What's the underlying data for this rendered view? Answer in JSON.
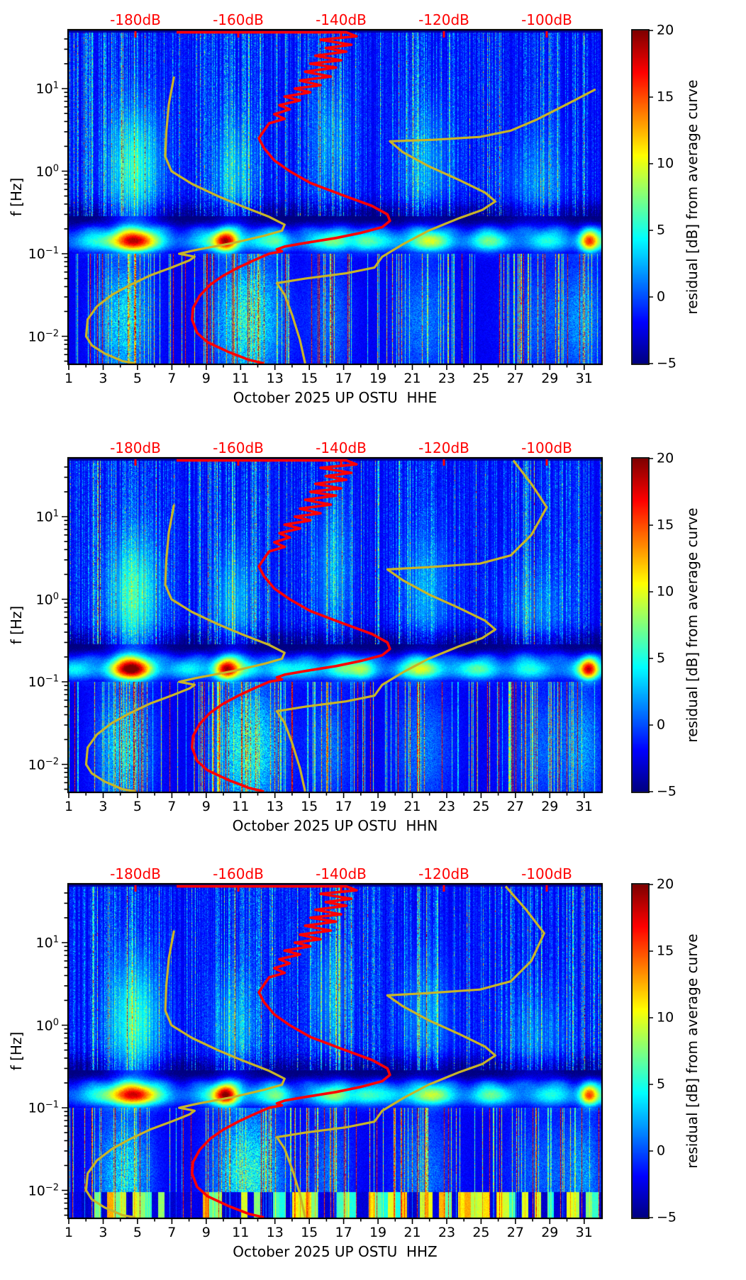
{
  "chart_data": {
    "type": "heatmap",
    "layout": "three stacked daily-spectrogram panels with identical axes, each with its own jet colorbar",
    "panels": [
      {
        "channel": "HHE",
        "title": "October 2025 UP OSTU  HHE"
      },
      {
        "channel": "HHN",
        "title": "October 2025 UP OSTU  HHN"
      },
      {
        "channel": "HHZ",
        "title": "October 2025 UP OSTU  HHZ"
      }
    ],
    "x_axis": {
      "month": "October 2025",
      "ticks_day": [
        1,
        3,
        5,
        7,
        9,
        11,
        13,
        15,
        17,
        19,
        21,
        23,
        25,
        27,
        29,
        31
      ],
      "range_day": [
        1,
        32
      ],
      "minor_ticks": "every day"
    },
    "y_axis": {
      "label": "f [Hz]",
      "scale": "log",
      "range_hz": [
        0.0047,
        50
      ],
      "major_ticks_hz": [
        10,
        1,
        0.1,
        0.01
      ],
      "tick_exponents": [
        1,
        0,
        -1,
        -2
      ]
    },
    "colorbar": {
      "label": "residual [dB] from average curve",
      "colormap": "jet",
      "range_db": [
        -5,
        20
      ],
      "ticks_db": [
        20,
        15,
        10,
        5,
        0,
        -5
      ]
    },
    "top_db_axis": {
      "unit": "dB",
      "color": "#ff0000",
      "ticks_db": [
        -180,
        -160,
        -140,
        -120,
        -100
      ],
      "labels": [
        "-180dB",
        "-160dB",
        "-140dB",
        "-120dB",
        "-100dB"
      ]
    },
    "overlay_curves": {
      "average_psd_red": [
        [
          -172,
          48
        ],
        [
          -139,
          48
        ],
        [
          -137,
          43
        ],
        [
          -144,
          39
        ],
        [
          -138,
          34
        ],
        [
          -143,
          31
        ],
        [
          -139,
          28
        ],
        [
          -145,
          25
        ],
        [
          -140,
          22
        ],
        [
          -146,
          20
        ],
        [
          -141,
          18
        ],
        [
          -147,
          16
        ],
        [
          -142,
          14
        ],
        [
          -148,
          12.5
        ],
        [
          -144,
          11
        ],
        [
          -149,
          10
        ],
        [
          -146,
          9
        ],
        [
          -151,
          8
        ],
        [
          -148,
          7.2
        ],
        [
          -152,
          6.3
        ],
        [
          -150,
          5.6
        ],
        [
          -153,
          4.9
        ],
        [
          -151,
          4.3
        ],
        [
          -154,
          3.8
        ],
        [
          -155,
          3.1
        ],
        [
          -156,
          2.5
        ],
        [
          -155,
          1.9
        ],
        [
          -153,
          1.35
        ],
        [
          -150,
          1.0
        ],
        [
          -146,
          0.72
        ],
        [
          -140,
          0.52
        ],
        [
          -134,
          0.38
        ],
        [
          -131,
          0.3
        ],
        [
          -130.5,
          0.25
        ],
        [
          -132,
          0.21
        ],
        [
          -136,
          0.18
        ],
        [
          -141,
          0.155
        ],
        [
          -147,
          0.135
        ],
        [
          -151,
          0.122
        ],
        [
          -152.5,
          0.113
        ],
        [
          -151.5,
          0.107
        ],
        [
          -154,
          0.1
        ],
        [
          -155,
          0.094
        ],
        [
          -157,
          0.083
        ],
        [
          -160,
          0.068
        ],
        [
          -163,
          0.054
        ],
        [
          -165.5,
          0.042
        ],
        [
          -167.5,
          0.031
        ],
        [
          -168.8,
          0.022
        ],
        [
          -169,
          0.016
        ],
        [
          -168,
          0.011
        ],
        [
          -166,
          0.0085
        ],
        [
          -162,
          0.0065
        ],
        [
          -158,
          0.0052
        ],
        [
          -155,
          0.0047
        ]
      ],
      "low_noise_model_yellow": [
        [
          -172.5,
          14
        ],
        [
          -173.5,
          6.5
        ],
        [
          -174,
          3
        ],
        [
          -174.2,
          1.5
        ],
        [
          -173,
          1.0
        ],
        [
          -169,
          0.7
        ],
        [
          -164,
          0.5
        ],
        [
          -159,
          0.37
        ],
        [
          -154,
          0.28
        ],
        [
          -151,
          0.225
        ],
        [
          -151.5,
          0.19
        ],
        [
          -155,
          0.165
        ],
        [
          -161,
          0.135
        ],
        [
          -168,
          0.112
        ],
        [
          -171.5,
          0.1
        ],
        [
          -168.5,
          0.092
        ],
        [
          -169.5,
          0.083
        ],
        [
          -173,
          0.068
        ],
        [
          -177,
          0.055
        ],
        [
          -181,
          0.042
        ],
        [
          -184.5,
          0.032
        ],
        [
          -187.5,
          0.023
        ],
        [
          -189.3,
          0.016
        ],
        [
          -189.6,
          0.01
        ],
        [
          -188.5,
          0.0078
        ],
        [
          -186,
          0.0062
        ],
        [
          -182.5,
          0.005
        ],
        [
          -180,
          0.0047
        ]
      ],
      "high_noise_model_yellow": {
        "HHE": [
          [
            -90.5,
            9.8
          ],
          [
            -96,
            6.5
          ],
          [
            -102,
            4.2
          ],
          [
            -107,
            3.1
          ],
          [
            -113,
            2.6
          ],
          [
            -122,
            2.4
          ],
          [
            -130.5,
            2.3
          ],
          [
            -128,
            1.7
          ],
          [
            -123,
            1.15
          ],
          [
            -117,
            0.78
          ],
          [
            -112,
            0.55
          ],
          [
            -110,
            0.43
          ],
          [
            -112.5,
            0.34
          ],
          [
            -117,
            0.27
          ],
          [
            -123,
            0.19
          ],
          [
            -128,
            0.13
          ],
          [
            -132,
            0.092
          ],
          [
            -133.5,
            0.068
          ],
          [
            -139,
            0.058
          ],
          [
            -147,
            0.05
          ],
          [
            -152.5,
            0.044
          ],
          [
            -151,
            0.032
          ],
          [
            -149.5,
            0.018
          ],
          [
            -148,
            0.009
          ],
          [
            -147,
            0.0047
          ]
        ],
        "HHN": [
          [
            -106.5,
            48
          ],
          [
            -103,
            25
          ],
          [
            -100,
            13
          ],
          [
            -103,
            6
          ],
          [
            -107,
            3.4
          ],
          [
            -113,
            2.7
          ],
          [
            -123,
            2.45
          ],
          [
            -131,
            2.3
          ],
          [
            -128,
            1.7
          ],
          [
            -123,
            1.15
          ],
          [
            -117,
            0.78
          ],
          [
            -112,
            0.55
          ],
          [
            -110,
            0.43
          ],
          [
            -112.5,
            0.34
          ],
          [
            -117,
            0.27
          ],
          [
            -123,
            0.19
          ],
          [
            -128,
            0.13
          ],
          [
            -132,
            0.092
          ],
          [
            -133.5,
            0.068
          ],
          [
            -139,
            0.058
          ],
          [
            -147,
            0.05
          ],
          [
            -152.5,
            0.044
          ],
          [
            -151,
            0.032
          ],
          [
            -149.5,
            0.018
          ],
          [
            -148,
            0.009
          ],
          [
            -147,
            0.0047
          ]
        ],
        "HHZ": [
          [
            -108,
            48
          ],
          [
            -104,
            25
          ],
          [
            -100.5,
            13
          ],
          [
            -103,
            6
          ],
          [
            -107,
            3.4
          ],
          [
            -113,
            2.7
          ],
          [
            -123,
            2.45
          ],
          [
            -131,
            2.3
          ],
          [
            -128,
            1.7
          ],
          [
            -123,
            1.15
          ],
          [
            -117,
            0.78
          ],
          [
            -112,
            0.55
          ],
          [
            -110,
            0.43
          ],
          [
            -112.5,
            0.34
          ],
          [
            -117,
            0.27
          ],
          [
            -123,
            0.19
          ],
          [
            -128,
            0.13
          ],
          [
            -132,
            0.092
          ],
          [
            -133.5,
            0.068
          ],
          [
            -139,
            0.058
          ],
          [
            -147,
            0.05
          ],
          [
            -152.5,
            0.044
          ],
          [
            -151,
            0.032
          ],
          [
            -149.5,
            0.018
          ],
          [
            -148,
            0.009
          ],
          [
            -147,
            0.0047
          ]
        ]
      }
    },
    "hotspots": [
      {
        "day": 4.6,
        "f_hz": 0.15,
        "residual_db": 20
      },
      {
        "day": 10.1,
        "f_hz": 0.14,
        "residual_db": 20
      },
      {
        "day": 21.7,
        "f_hz": 0.15,
        "residual_db": 8
      },
      {
        "day": 31.2,
        "f_hz": 0.13,
        "residual_db": 17
      }
    ],
    "colors": {
      "db_axis_red": "#ff0000",
      "average_curve_red": "#ff0000",
      "noise_model_yellow": "#c8b428",
      "axes_black": "#000000",
      "background": "#ffffff"
    }
  }
}
